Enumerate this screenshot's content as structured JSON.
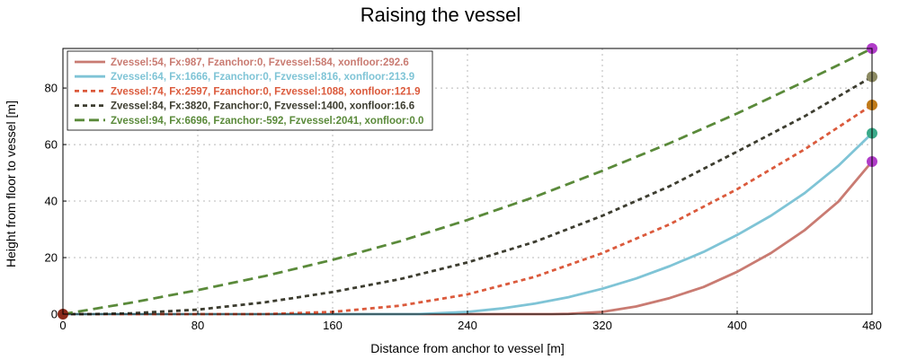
{
  "chart_data": {
    "type": "line",
    "title": "Raising the vessel",
    "xlabel": "Distance from anchor to vessel [m]",
    "ylabel": "Height from floor to vessel [m]",
    "xlim": [
      0,
      480
    ],
    "ylim": [
      0,
      94
    ],
    "xticks": [
      0,
      80,
      160,
      240,
      320,
      400,
      480
    ],
    "yticks": [
      0,
      20,
      40,
      60,
      80
    ],
    "grid": true,
    "legend_position": "top-left",
    "series": [
      {
        "name": "Zvessel:54, Fx:987, Fzanchor:0, Fzvessel:584, xonfloor:292.6",
        "color": "#c97b72",
        "style": "solid",
        "x": [
          0,
          290,
          300,
          320,
          340,
          360,
          380,
          400,
          420,
          440,
          460,
          480
        ],
        "y": [
          0,
          0,
          0.1,
          0.8,
          2.7,
          5.7,
          9.6,
          15.0,
          21.6,
          29.7,
          39.8,
          54
        ]
      },
      {
        "name": "Zvessel:64, Fx:1666, Fzanchor:0, Fzvessel:816, xonfloor:213.9",
        "color": "#7fc4d6",
        "style": "solid",
        "x": [
          0,
          210,
          240,
          260,
          280,
          300,
          320,
          340,
          360,
          380,
          400,
          420,
          440,
          460,
          480
        ],
        "y": [
          0,
          0,
          0.8,
          2.0,
          3.7,
          6.0,
          9.0,
          12.6,
          17.0,
          22.0,
          28.0,
          34.8,
          42.8,
          52.5,
          64
        ]
      },
      {
        "name": "Zvessel:74, Fx:2597, Fzanchor:0, Fzvessel:1088, xonfloor:121.9",
        "color": "#db5a3c",
        "style": "dotted",
        "x": [
          0,
          120,
          160,
          200,
          240,
          280,
          320,
          360,
          400,
          440,
          480
        ],
        "y": [
          0,
          0,
          0.8,
          3.0,
          7.0,
          13.2,
          21.6,
          31.8,
          44.2,
          58.3,
          74
        ]
      },
      {
        "name": "Zvessel:84, Fx:3820, Fzanchor:0, Fzvessel:1400, xonfloor:16.6",
        "color": "#3d3d30",
        "style": "dotted",
        "x": [
          0,
          16.6,
          40,
          80,
          120,
          160,
          200,
          240,
          280,
          320,
          360,
          400,
          440,
          480
        ],
        "y": [
          0,
          0,
          0.3,
          1.6,
          4.2,
          7.8,
          12.4,
          18.3,
          25.6,
          34.8,
          45.3,
          57.5,
          70.0,
          84
        ]
      },
      {
        "name": "Zvessel:94, Fx:6696, Fzanchor:-592, Fzvessel:2041, xonfloor:0.0",
        "color": "#5a8a3a",
        "style": "dashed",
        "x": [
          0,
          40,
          80,
          120,
          160,
          200,
          240,
          280,
          320,
          360,
          400,
          440,
          480
        ],
        "y": [
          0,
          4,
          8.5,
          13.5,
          19.2,
          25.8,
          33.3,
          41.5,
          50.7,
          60.5,
          71.0,
          82.3,
          94
        ]
      }
    ],
    "markers": [
      {
        "x": 0,
        "y": 0,
        "color": "#8b2a1a"
      },
      {
        "x": 480,
        "y": 54,
        "color": "#b03cc8"
      },
      {
        "x": 480,
        "y": 64,
        "color": "#3aaa8a"
      },
      {
        "x": 480,
        "y": 74,
        "color": "#c07a18"
      },
      {
        "x": 480,
        "y": 84,
        "color": "#8c8a62"
      },
      {
        "x": 480,
        "y": 94,
        "color": "#b03cc8"
      }
    ]
  }
}
